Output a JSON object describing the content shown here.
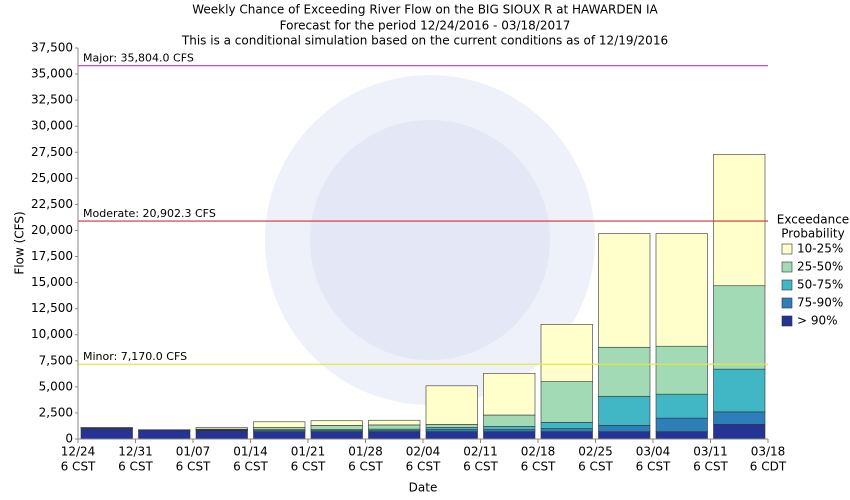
{
  "chart_data": {
    "type": "stacked_bar",
    "title": "Weekly Chance of Exceeding River Flow on the BIG SIOUX R at HAWARDEN IA",
    "subtitle": [
      "Forecast for the period 12/24/2016 - 03/18/2017",
      "This is a conditional simulation based on the current conditions as of 12/19/2016"
    ],
    "y_label": "Flow (CFS)",
    "x_label": "Date",
    "xticks": [
      {
        "label": "12/24",
        "sublabel": "6 CST"
      },
      {
        "label": "12/31",
        "sublabel": "6 CST"
      },
      {
        "label": "01/07",
        "sublabel": "6 CST"
      },
      {
        "label": "01/14",
        "sublabel": "6 CST"
      },
      {
        "label": "01/21",
        "sublabel": "6 CST"
      },
      {
        "label": "01/28",
        "sublabel": "6 CST"
      },
      {
        "label": "02/04",
        "sublabel": "6 CST"
      },
      {
        "label": "02/11",
        "sublabel": "6 CST"
      },
      {
        "label": "02/18",
        "sublabel": "6 CST"
      },
      {
        "label": "02/25",
        "sublabel": "6 CST"
      },
      {
        "label": "03/04",
        "sublabel": "6 CST"
      },
      {
        "label": "03/11",
        "sublabel": "6 CST"
      },
      {
        "label": "03/18",
        "sublabel": "6 CDT"
      }
    ],
    "ylim": [
      0,
      37500
    ],
    "yticks": [
      0,
      {
        "value": 2500,
        "label": "2,500"
      },
      {
        "value": 5000,
        "label": "5,000"
      },
      {
        "value": 7500,
        "label": "7,500"
      },
      {
        "value": 10000,
        "label": "10,000"
      },
      {
        "value": 12500,
        "label": "12,500"
      },
      {
        "value": 15000,
        "label": "15,000"
      },
      {
        "value": 17500,
        "label": "17,500"
      },
      {
        "value": 20000,
        "label": "20,000"
      },
      {
        "value": 22500,
        "label": "22,500"
      },
      {
        "value": 25000,
        "label": "25,000"
      },
      {
        "value": 27500,
        "label": "27,500"
      },
      {
        "value": 30000,
        "label": "30,000"
      },
      {
        "value": 32500,
        "label": "32,500"
      },
      {
        "value": 35000,
        "label": "35,000"
      },
      {
        "value": 37500,
        "label": "37,500"
      }
    ],
    "legend_title": [
      "Exceedance",
      "Probability"
    ],
    "series": [
      {
        "name": "> 90%",
        "color": "#253494",
        "values": [
          1000,
          850,
          800,
          700,
          700,
          700,
          700,
          700,
          700,
          700,
          700,
          1400
        ]
      },
      {
        "name": "75-90%",
        "color": "#2c7fb8",
        "values": [
          50,
          20,
          50,
          100,
          100,
          100,
          200,
          200,
          300,
          600,
          1300,
          1200
        ]
      },
      {
        "name": "50-75%",
        "color": "#41b6c4",
        "values": [
          30,
          10,
          50,
          100,
          100,
          150,
          200,
          300,
          600,
          2800,
          2300,
          4100
        ]
      },
      {
        "name": "25-50%",
        "color": "#a1dab4",
        "values": [
          20,
          10,
          50,
          200,
          400,
          400,
          300,
          1100,
          3900,
          4700,
          4600,
          8000
        ]
      },
      {
        "name": "10-25%",
        "color": "#ffffcc",
        "values": [
          0,
          0,
          150,
          550,
          450,
          450,
          3700,
          4000,
          5500,
          10900,
          10800,
          12600
        ]
      }
    ],
    "thresholds": [
      {
        "label": "Major: 35,804.0 CFS",
        "value": 35804,
        "color": "#cc33cc"
      },
      {
        "label": "Moderate: 20,902.3 CFS",
        "value": 20902.3,
        "color": "#cc3333"
      },
      {
        "label": "Minor: 7,170.0 CFS",
        "value": 7170,
        "color": "#e6e64d"
      }
    ]
  }
}
